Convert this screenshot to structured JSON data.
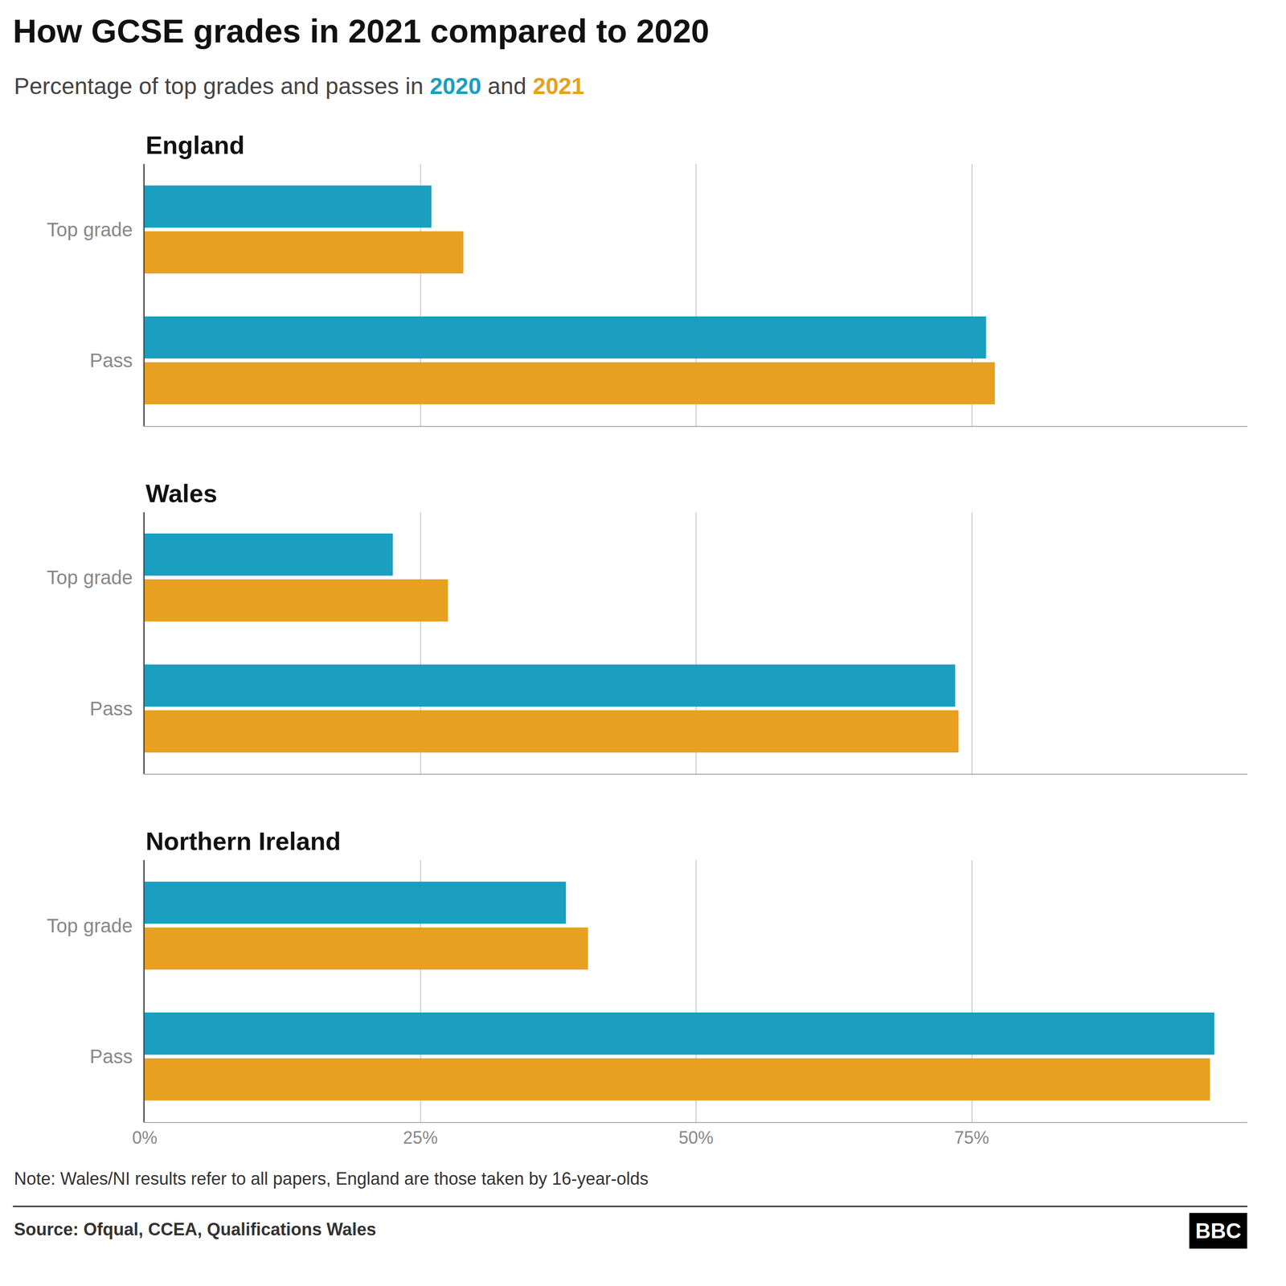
{
  "title": "How GCSE grades in 2021 compared to 2020",
  "subtitle": "Percentage of top grades and passes in 2020 and 2021",
  "annotations": [
    "Note: Wales/NI results refer to all papers, England are those taken by 16-year-olds",
    "Source: Ofqual, CCEA, Qualifications Wales",
    "BBC"
  ],
  "chart_data": [
    {
      "type": "bar",
      "title": "England",
      "orientation": "horizontal",
      "categories": [
        "Top grade",
        "Pass"
      ],
      "series": [
        {
          "name": "2020",
          "color": "#1a9fc0",
          "values": [
            26.0,
            76.3
          ]
        },
        {
          "name": "2021",
          "color": "#e8a020",
          "values": [
            28.9,
            77.1
          ]
        }
      ],
      "xlim": [
        0,
        100
      ],
      "xticks": [
        {
          "value": 0,
          "label": "0%"
        },
        {
          "value": 25,
          "label": "25%"
        },
        {
          "value": 50,
          "label": "50%"
        },
        {
          "value": 75,
          "label": "75%"
        }
      ],
      "grid": true,
      "tick_labels": "y"
    },
    {
      "type": "bar",
      "title": "Wales",
      "orientation": "horizontal",
      "categories": [
        "Top grade",
        "Pass"
      ],
      "series": [
        {
          "name": "2020",
          "color": "#1a9fc0",
          "values": [
            22.5,
            73.5
          ]
        },
        {
          "name": "2021",
          "color": "#e8a020",
          "values": [
            27.5,
            73.8
          ]
        }
      ],
      "xlim": [
        0,
        100
      ],
      "xticks": [
        {
          "value": 0,
          "label": "0%"
        },
        {
          "value": 25,
          "label": "25%"
        },
        {
          "value": 50,
          "label": "50%"
        },
        {
          "value": 75,
          "label": "75%"
        }
      ],
      "grid": true,
      "tick_labels": "y"
    },
    {
      "type": "bar",
      "title": "Northern Ireland",
      "orientation": "horizontal",
      "categories": [
        "Top grade",
        "Pass"
      ],
      "series": [
        {
          "name": "2020",
          "color": "#1a9fc0",
          "values": [
            38.2,
            97.0
          ]
        },
        {
          "name": "2021",
          "color": "#e8a020",
          "values": [
            40.2,
            96.6
          ]
        }
      ],
      "xlim": [
        0,
        100
      ],
      "xticks": [
        {
          "value": 0,
          "label": "0%"
        },
        {
          "value": 25,
          "label": "25%"
        },
        {
          "value": 50,
          "label": "50%"
        },
        {
          "value": 75,
          "label": "75%"
        }
      ],
      "grid": true
    }
  ]
}
